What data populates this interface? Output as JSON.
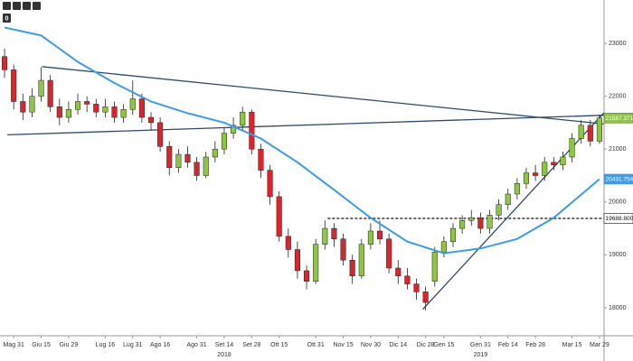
{
  "chart_data": {
    "type": "candlestick",
    "badge": "0",
    "categories": [
      null,
      "Mag 31",
      null,
      null,
      "Giu 15",
      null,
      null,
      "Giu 29",
      null,
      null,
      null,
      "Lug 16",
      null,
      null,
      "Lug 31",
      null,
      null,
      "Ago 16",
      null,
      null,
      null,
      "Ago 31",
      null,
      null,
      "Set 14",
      null,
      null,
      "Set 28",
      null,
      null,
      "Ott 15",
      null,
      null,
      null,
      "Ott 31",
      null,
      null,
      "Nov 15",
      null,
      null,
      "Nov 30",
      null,
      null,
      "Dic 14",
      null,
      null,
      "Dic 28",
      null,
      "Gen 15",
      null,
      null,
      null,
      "Gen 31",
      null,
      null,
      "Feb 14",
      null,
      null,
      "Feb 28",
      null,
      null,
      null,
      "Mar 15",
      null,
      null,
      "Mar 29"
    ],
    "years": [
      {
        "label": "2018",
        "index": 24
      },
      {
        "label": "2019",
        "index": 52
      }
    ],
    "open": [
      22750,
      22500,
      21900,
      21700,
      22000,
      22300,
      21800,
      21600,
      21750,
      21900,
      21850,
      21700,
      21800,
      21600,
      21750,
      21950,
      21600,
      21500,
      21050,
      20650,
      20900,
      20750,
      20500,
      20850,
      21000,
      21300,
      21450,
      21700,
      21000,
      20600,
      20100,
      19350,
      19100,
      18700,
      18500,
      19200,
      19500,
      19300,
      18900,
      18600,
      19200,
      19450,
      19300,
      18750,
      18600,
      18450,
      18300,
      18500,
      19050,
      19250,
      19500,
      19650,
      19700,
      19500,
      19750,
      19950,
      20150,
      20350,
      20550,
      20500,
      20750,
      20700,
      20850,
      21200,
      21450,
      21150
    ],
    "high": [
      22900,
      22600,
      22050,
      22150,
      22550,
      22400,
      21950,
      21900,
      22050,
      22000,
      21950,
      21950,
      21900,
      21850,
      22300,
      22050,
      21700,
      21600,
      21150,
      21000,
      21050,
      20850,
      20950,
      21150,
      21400,
      21600,
      21800,
      21750,
      21100,
      20700,
      20200,
      19500,
      19250,
      18800,
      19300,
      19650,
      19600,
      19400,
      19000,
      19300,
      19600,
      19650,
      19400,
      18900,
      18750,
      18550,
      18400,
      19150,
      19350,
      19600,
      19750,
      19850,
      19800,
      19850,
      20050,
      20250,
      20450,
      20650,
      20700,
      20850,
      20850,
      20950,
      21300,
      21550,
      21550,
      21650
    ],
    "low": [
      22350,
      21750,
      21550,
      21600,
      21900,
      21700,
      21450,
      21500,
      21650,
      21700,
      21600,
      21600,
      21500,
      21500,
      21650,
      21500,
      21350,
      20950,
      20500,
      20550,
      20650,
      20400,
      20450,
      20750,
      20900,
      21200,
      21350,
      20900,
      20450,
      19950,
      19250,
      18950,
      18550,
      18350,
      18450,
      19100,
      19150,
      18800,
      18450,
      18550,
      19100,
      19200,
      18650,
      18450,
      18350,
      18150,
      17950,
      18400,
      18950,
      19150,
      19400,
      19550,
      19400,
      19400,
      19650,
      19850,
      20050,
      20250,
      20400,
      20400,
      20600,
      20600,
      20750,
      21100,
      21050,
      21100
    ],
    "close": [
      22500,
      21900,
      21700,
      22000,
      22300,
      21800,
      21600,
      21750,
      21900,
      21850,
      21700,
      21800,
      21600,
      21750,
      21950,
      21600,
      21500,
      21050,
      20650,
      20900,
      20750,
      20500,
      20850,
      21000,
      21300,
      21450,
      21700,
      21000,
      20600,
      20100,
      19350,
      19100,
      18700,
      18500,
      19200,
      19500,
      19300,
      18900,
      18600,
      19200,
      19450,
      19300,
      18750,
      18600,
      18450,
      18300,
      18100,
      19050,
      19250,
      19500,
      19650,
      19700,
      19500,
      19750,
      19950,
      20150,
      20350,
      20550,
      20500,
      20750,
      20700,
      20850,
      21200,
      21450,
      21150,
      21587.3713
    ],
    "up_color": "#8dc63f",
    "down_color": "#d7262e",
    "ma": {
      "color": "#3d9be9",
      "x": [
        0,
        4,
        8,
        12,
        16,
        20,
        24,
        28,
        32,
        36,
        40,
        44,
        48,
        52,
        56,
        60,
        65
      ],
      "values": [
        23300,
        23150,
        22650,
        22250,
        21900,
        21680,
        21500,
        21200,
        20750,
        20230,
        19700,
        19250,
        19030,
        19120,
        19300,
        19700,
        20431.7544
      ]
    },
    "trend_color": "#2c4a6b",
    "trendlines": [
      {
        "x": [
          4.1,
          65.5
        ],
        "values": [
          22560,
          21475
        ]
      },
      {
        "x": [
          0.3,
          65.5
        ],
        "values": [
          21270,
          21640
        ]
      },
      {
        "x": [
          45.7,
          65.5
        ],
        "values": [
          17970,
          21690
        ]
      }
    ],
    "level": {
      "value": 19688.8008,
      "from": 35.3
    },
    "ylim": [
      17470,
      23820
    ],
    "yticks": [
      18000,
      19000,
      20000,
      21000,
      22000,
      23000
    ]
  }
}
